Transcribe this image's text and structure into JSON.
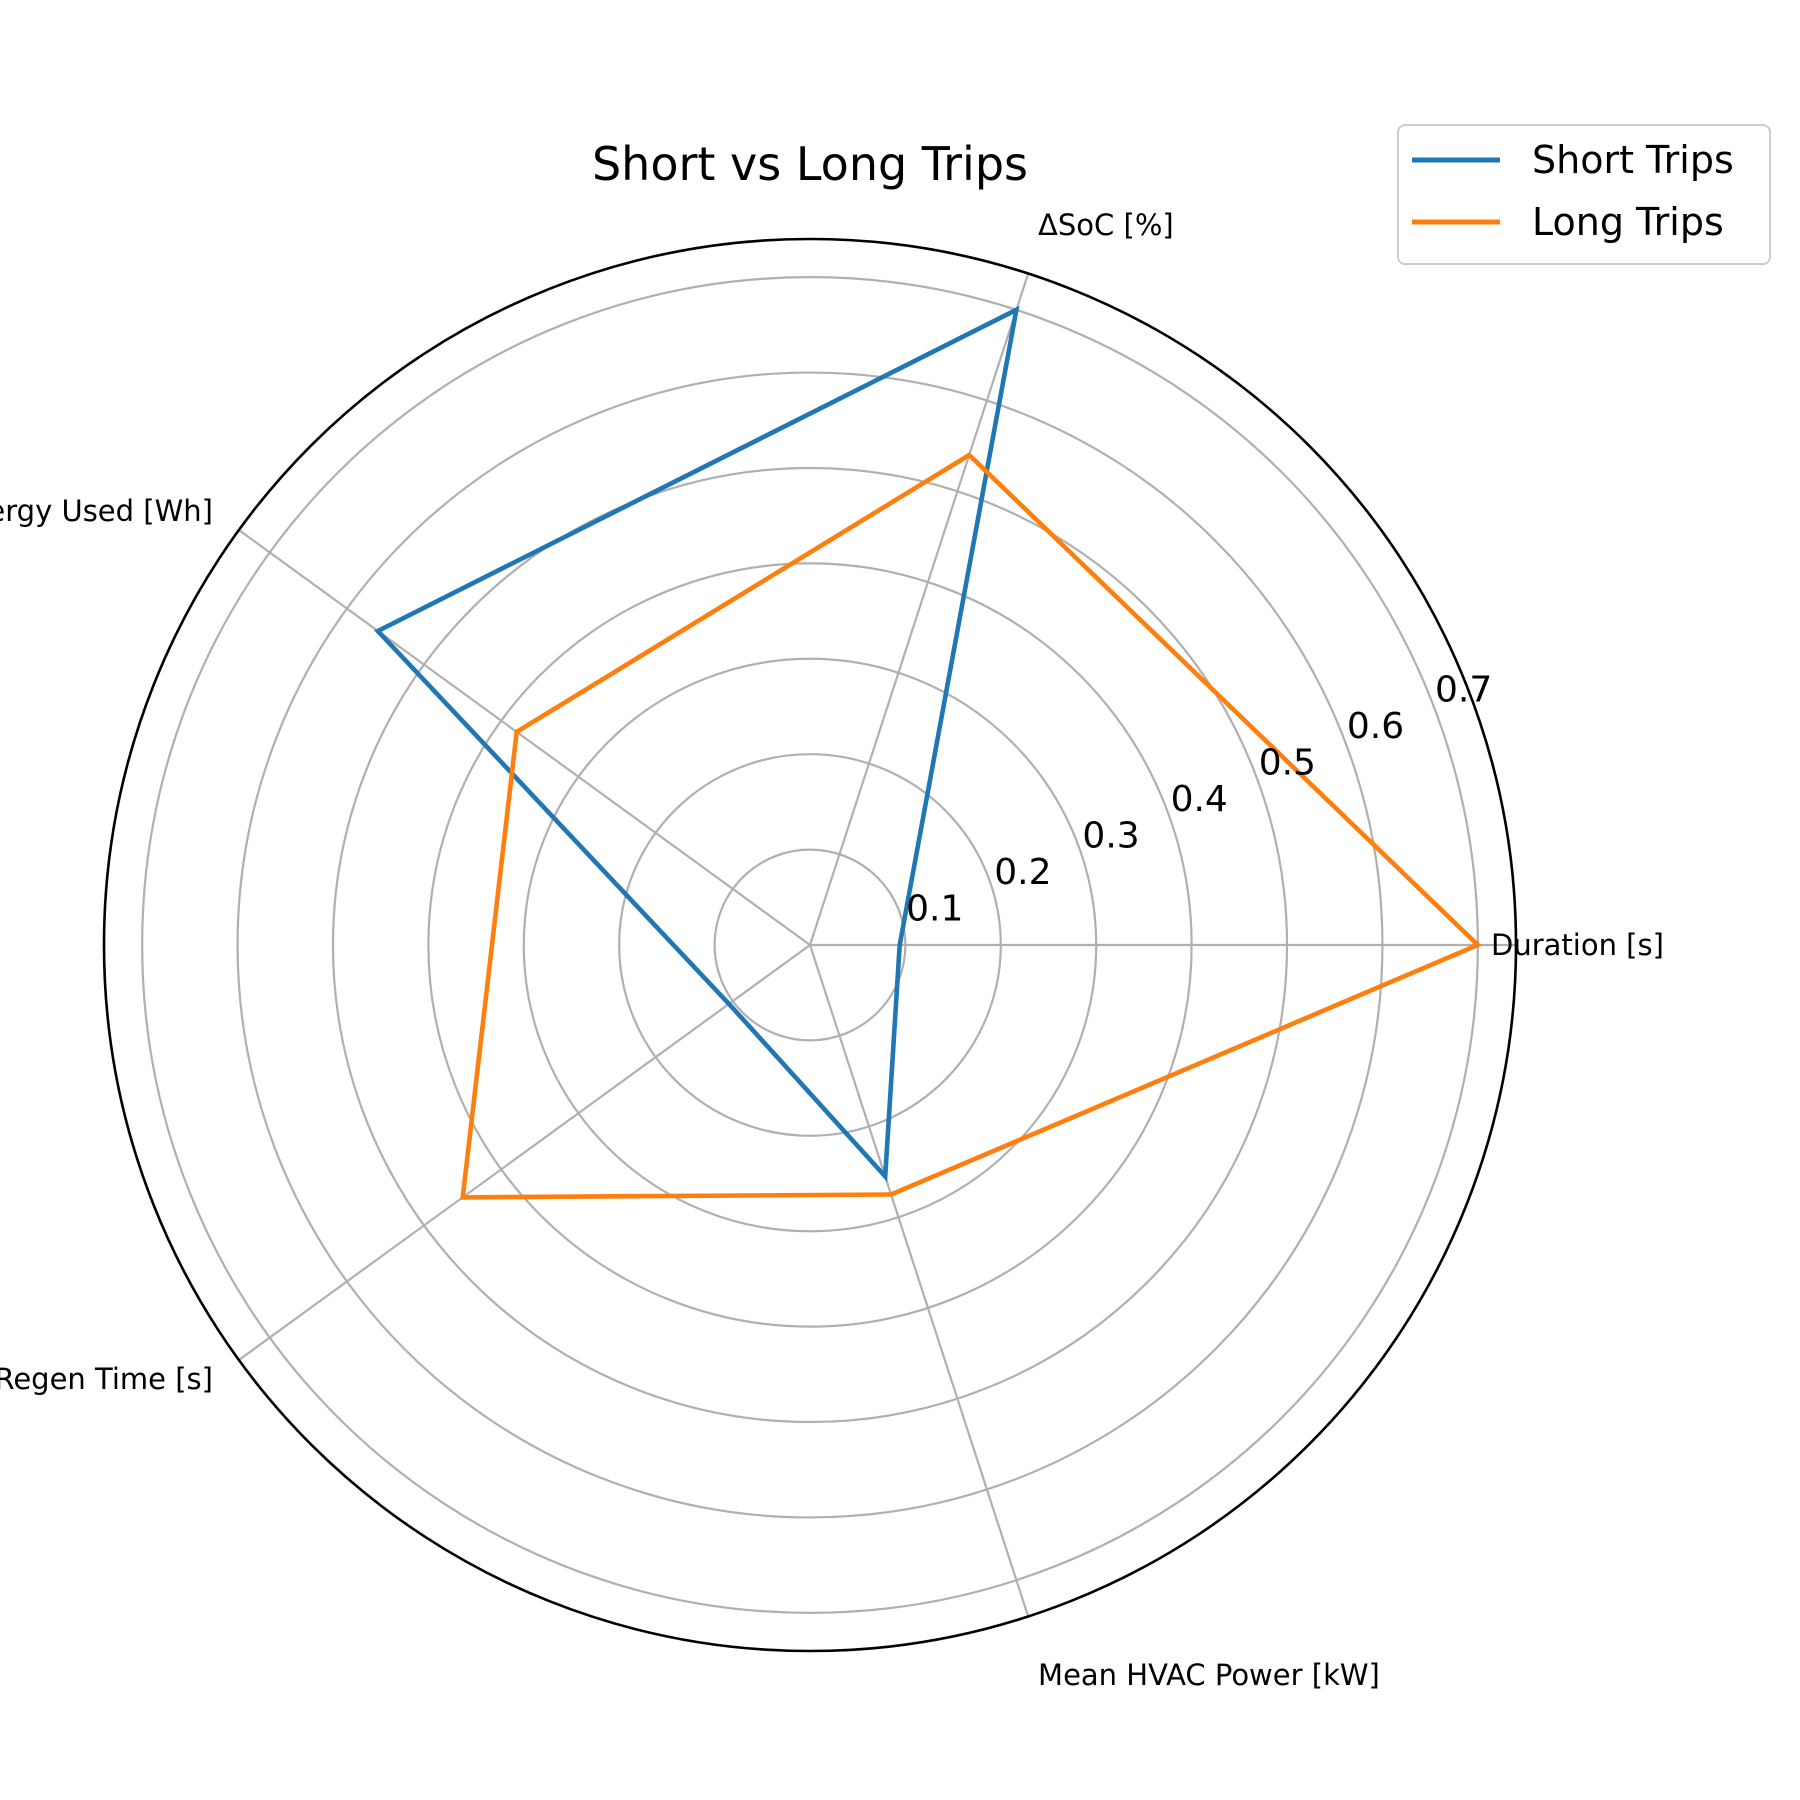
{
  "chart_data": {
    "type": "radar",
    "title": "Short vs Long Trips",
    "categories": [
      "Duration [s]",
      "ΔSoC [%]",
      "Energy Used [Wh]",
      "Regen Time [s]",
      "Mean HVAC Power [kW]"
    ],
    "rlim": [
      0,
      0.74
    ],
    "rticks": [
      0.1,
      0.2,
      0.3,
      0.4,
      0.5,
      0.6,
      0.7
    ],
    "rtick_labels": [
      "0.1",
      "0.2",
      "0.3",
      "0.4",
      "0.5",
      "0.6",
      "0.7"
    ],
    "grid": true,
    "legend_position": "top-right",
    "series": [
      {
        "name": "Short Trips",
        "color": "#1f77b4",
        "values": [
          0.094,
          0.7,
          0.56,
          0.105,
          0.255
        ]
      },
      {
        "name": "Long Trips",
        "color": "#ff7f0e",
        "values": [
          0.7,
          0.54,
          0.38,
          0.45,
          0.275
        ]
      }
    ]
  }
}
